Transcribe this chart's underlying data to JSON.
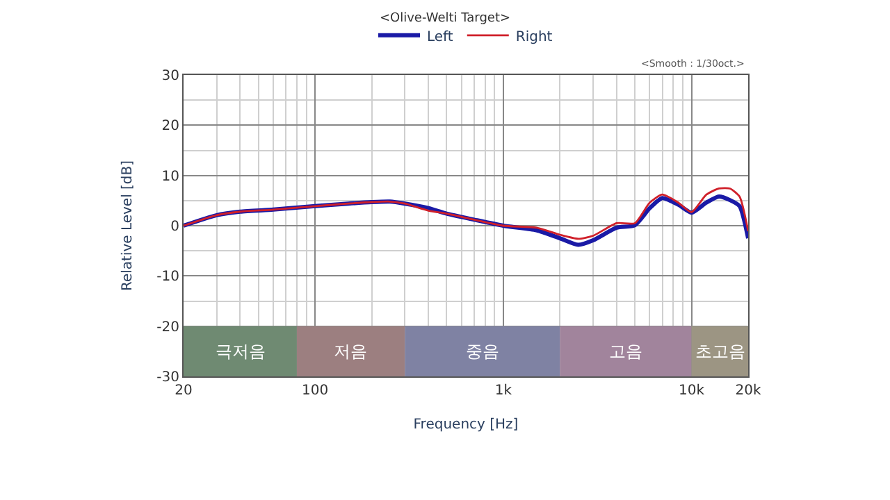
{
  "chart_data": {
    "type": "line",
    "title": "<Olive-Welti Target>",
    "xlabel": "Frequency [Hz]",
    "ylabel": "Relative Level [dB]",
    "annotations": [
      "<Smooth : 1/30oct.>"
    ],
    "x": [
      20,
      30,
      40,
      60,
      100,
      150,
      200,
      250,
      300,
      400,
      500,
      700,
      1000,
      1500,
      2000,
      2500,
      3000,
      4000,
      5000,
      6000,
      7000,
      8500,
      10000,
      12000,
      14000,
      16000,
      18000,
      20000
    ],
    "series": [
      {
        "name": "Left",
        "color": "#1a1aa6",
        "values": [
          0,
          2.1,
          2.8,
          3.2,
          3.9,
          4.4,
          4.7,
          4.8,
          4.4,
          3.5,
          2.4,
          1.2,
          0,
          -0.9,
          -2.5,
          -3.8,
          -2.9,
          -0.4,
          0.1,
          3.5,
          5.5,
          4.2,
          2.6,
          4.6,
          5.8,
          5.1,
          3.9,
          -2.5
        ]
      },
      {
        "name": "Right",
        "color": "#d0202a",
        "values": [
          0,
          2.1,
          2.8,
          3.2,
          3.9,
          4.4,
          4.7,
          4.8,
          4.4,
          3.0,
          2.4,
          1.2,
          0,
          -0.4,
          -1.8,
          -2.6,
          -2.0,
          0.5,
          0.5,
          4.6,
          6.2,
          4.6,
          2.7,
          6.2,
          7.4,
          7.4,
          5.8,
          -1.1
        ]
      }
    ],
    "log": "x",
    "xlim": [
      20,
      20000
    ],
    "xticks": [
      20,
      100,
      {
        "value": 1000,
        "label": "1k"
      },
      {
        "value": 10000,
        "label": "10k"
      },
      {
        "value": 20000,
        "label": "20k"
      }
    ],
    "ylim": [
      -30,
      30
    ],
    "yticks": [
      -30,
      -20,
      -10,
      0,
      10,
      20,
      30
    ],
    "grid": true,
    "legend": "top",
    "line_style": "solid",
    "marker": "none",
    "bands": [
      {
        "axis": "x",
        "from": 20,
        "to": 80,
        "label": "극저음",
        "color": "#6f8a72"
      },
      {
        "axis": "x",
        "from": 80,
        "to": 300,
        "label": "저음",
        "color": "#9c7f80"
      },
      {
        "axis": "x",
        "from": 300,
        "to": 2000,
        "label": "중음",
        "color": "#7f82a3"
      },
      {
        "axis": "x",
        "from": 2000,
        "to": 10000,
        "label": "고음",
        "color": "#a1849c"
      },
      {
        "axis": "x",
        "from": 10000,
        "to": 20000,
        "label": "초고음",
        "color": "#9c9583"
      }
    ]
  }
}
